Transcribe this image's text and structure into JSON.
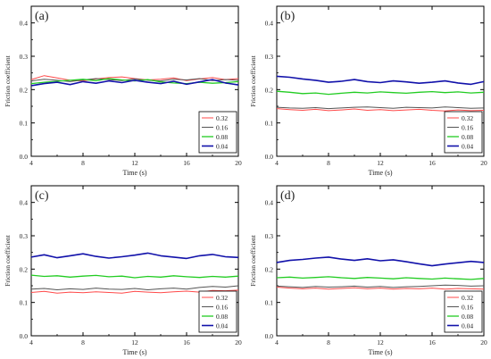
{
  "chart_data": [
    {
      "type": "line",
      "panel_label": "(a)",
      "xlabel": "Time (s)",
      "ylabel": "Friction coefficient",
      "xlim": [
        4,
        20
      ],
      "ylim": [
        0.0,
        0.45
      ],
      "xticks": [
        "4",
        "8",
        "12",
        "16",
        "20"
      ],
      "yticks": [
        "0.0",
        "0.1",
        "0.2",
        "0.3",
        "0.4"
      ],
      "legend_position": "bottom-right",
      "x": [
        4,
        5,
        6,
        7,
        8,
        9,
        10,
        11,
        12,
        13,
        14,
        15,
        16,
        17,
        18,
        19,
        20
      ],
      "series": [
        {
          "name": "0.32",
          "color": "#ff4a4a",
          "values": [
            0.23,
            0.242,
            0.235,
            0.228,
            0.226,
            0.232,
            0.236,
            0.238,
            0.233,
            0.229,
            0.231,
            0.235,
            0.227,
            0.232,
            0.236,
            0.23,
            0.233
          ]
        },
        {
          "name": "0.16",
          "color": "#555555",
          "values": [
            0.226,
            0.231,
            0.228,
            0.224,
            0.229,
            0.233,
            0.23,
            0.227,
            0.232,
            0.228,
            0.226,
            0.231,
            0.229,
            0.233,
            0.227,
            0.23,
            0.228
          ]
        },
        {
          "name": "0.08",
          "color": "#22cc22",
          "values": [
            0.218,
            0.222,
            0.225,
            0.228,
            0.231,
            0.227,
            0.233,
            0.229,
            0.226,
            0.23,
            0.223,
            0.22,
            0.218,
            0.222,
            0.219,
            0.221,
            0.224
          ]
        },
        {
          "name": "0.04",
          "color": "#1111aa",
          "values": [
            0.212,
            0.218,
            0.222,
            0.215,
            0.224,
            0.219,
            0.226,
            0.221,
            0.228,
            0.222,
            0.218,
            0.225,
            0.216,
            0.223,
            0.23,
            0.22,
            0.214
          ]
        }
      ]
    },
    {
      "type": "line",
      "panel_label": "(b)",
      "xlabel": "Time (s)",
      "ylabel": "Friction coefficient",
      "xlim": [
        4,
        20
      ],
      "ylim": [
        0.0,
        0.45
      ],
      "xticks": [
        "4",
        "8",
        "12",
        "16",
        "20"
      ],
      "yticks": [
        "0.0",
        "0.1",
        "0.2",
        "0.3",
        "0.4"
      ],
      "legend_position": "bottom-right",
      "x": [
        4,
        5,
        6,
        7,
        8,
        9,
        10,
        11,
        12,
        13,
        14,
        15,
        16,
        17,
        18,
        19,
        20
      ],
      "series": [
        {
          "name": "0.32",
          "color": "#ff4a4a",
          "values": [
            0.143,
            0.14,
            0.138,
            0.141,
            0.137,
            0.139,
            0.142,
            0.138,
            0.14,
            0.137,
            0.139,
            0.141,
            0.138,
            0.136,
            0.139,
            0.137,
            0.138
          ]
        },
        {
          "name": "0.16",
          "color": "#555555",
          "values": [
            0.147,
            0.145,
            0.144,
            0.146,
            0.143,
            0.145,
            0.147,
            0.148,
            0.146,
            0.144,
            0.147,
            0.146,
            0.145,
            0.148,
            0.146,
            0.144,
            0.145
          ]
        },
        {
          "name": "0.08",
          "color": "#22cc22",
          "values": [
            0.195,
            0.192,
            0.188,
            0.19,
            0.186,
            0.189,
            0.192,
            0.19,
            0.193,
            0.191,
            0.189,
            0.192,
            0.194,
            0.191,
            0.193,
            0.19,
            0.192
          ]
        },
        {
          "name": "0.04",
          "color": "#1111aa",
          "values": [
            0.24,
            0.237,
            0.232,
            0.228,
            0.222,
            0.225,
            0.23,
            0.224,
            0.221,
            0.226,
            0.223,
            0.219,
            0.222,
            0.226,
            0.22,
            0.216,
            0.224
          ]
        }
      ]
    },
    {
      "type": "line",
      "panel_label": "(c)",
      "xlabel": "Time (s)",
      "ylabel": "Friction coefficient",
      "xlim": [
        4,
        20
      ],
      "ylim": [
        0.0,
        0.45
      ],
      "xticks": [
        "4",
        "8",
        "12",
        "16",
        "20"
      ],
      "yticks": [
        "0.0",
        "0.1",
        "0.2",
        "0.3",
        "0.4"
      ],
      "legend_position": "bottom-right",
      "x": [
        4,
        5,
        6,
        7,
        8,
        9,
        10,
        11,
        12,
        13,
        14,
        15,
        16,
        17,
        18,
        19,
        20
      ],
      "series": [
        {
          "name": "0.32",
          "color": "#ff4a4a",
          "values": [
            0.13,
            0.133,
            0.128,
            0.131,
            0.129,
            0.132,
            0.13,
            0.128,
            0.133,
            0.131,
            0.129,
            0.132,
            0.134,
            0.131,
            0.136,
            0.135,
            0.137
          ]
        },
        {
          "name": "0.16",
          "color": "#555555",
          "values": [
            0.14,
            0.142,
            0.138,
            0.141,
            0.139,
            0.143,
            0.14,
            0.139,
            0.142,
            0.138,
            0.141,
            0.143,
            0.14,
            0.145,
            0.148,
            0.146,
            0.15
          ]
        },
        {
          "name": "0.08",
          "color": "#22cc22",
          "values": [
            0.182,
            0.178,
            0.18,
            0.176,
            0.179,
            0.181,
            0.177,
            0.179,
            0.174,
            0.178,
            0.176,
            0.18,
            0.177,
            0.175,
            0.178,
            0.176,
            0.179
          ]
        },
        {
          "name": "0.04",
          "color": "#1111aa",
          "values": [
            0.236,
            0.243,
            0.234,
            0.24,
            0.246,
            0.238,
            0.233,
            0.237,
            0.242,
            0.248,
            0.24,
            0.236,
            0.232,
            0.24,
            0.244,
            0.237,
            0.235
          ]
        }
      ]
    },
    {
      "type": "line",
      "panel_label": "(d)",
      "xlabel": "Time (s)",
      "ylabel": "Friction coefficient",
      "xlim": [
        4,
        20
      ],
      "ylim": [
        0.0,
        0.45
      ],
      "xticks": [
        "4",
        "8",
        "12",
        "16",
        "20"
      ],
      "yticks": [
        "0.0",
        "0.1",
        "0.2",
        "0.3",
        "0.4"
      ],
      "legend_position": "bottom-right",
      "x": [
        4,
        5,
        6,
        7,
        8,
        9,
        10,
        11,
        12,
        13,
        14,
        15,
        16,
        17,
        18,
        19,
        20
      ],
      "series": [
        {
          "name": "0.32",
          "color": "#ff4a4a",
          "values": [
            0.146,
            0.143,
            0.141,
            0.143,
            0.14,
            0.142,
            0.144,
            0.141,
            0.143,
            0.14,
            0.142,
            0.141,
            0.143,
            0.14,
            0.142,
            0.141,
            0.14
          ]
        },
        {
          "name": "0.16",
          "color": "#555555",
          "values": [
            0.149,
            0.147,
            0.145,
            0.148,
            0.146,
            0.147,
            0.149,
            0.146,
            0.148,
            0.145,
            0.147,
            0.148,
            0.15,
            0.152,
            0.151,
            0.149,
            0.15
          ]
        },
        {
          "name": "0.08",
          "color": "#22cc22",
          "values": [
            0.174,
            0.176,
            0.173,
            0.175,
            0.177,
            0.174,
            0.172,
            0.175,
            0.173,
            0.171,
            0.174,
            0.172,
            0.17,
            0.173,
            0.171,
            0.169,
            0.172
          ]
        },
        {
          "name": "0.04",
          "color": "#1111aa",
          "values": [
            0.22,
            0.226,
            0.229,
            0.233,
            0.236,
            0.23,
            0.226,
            0.231,
            0.225,
            0.228,
            0.222,
            0.216,
            0.21,
            0.215,
            0.219,
            0.223,
            0.22
          ]
        }
      ]
    }
  ]
}
